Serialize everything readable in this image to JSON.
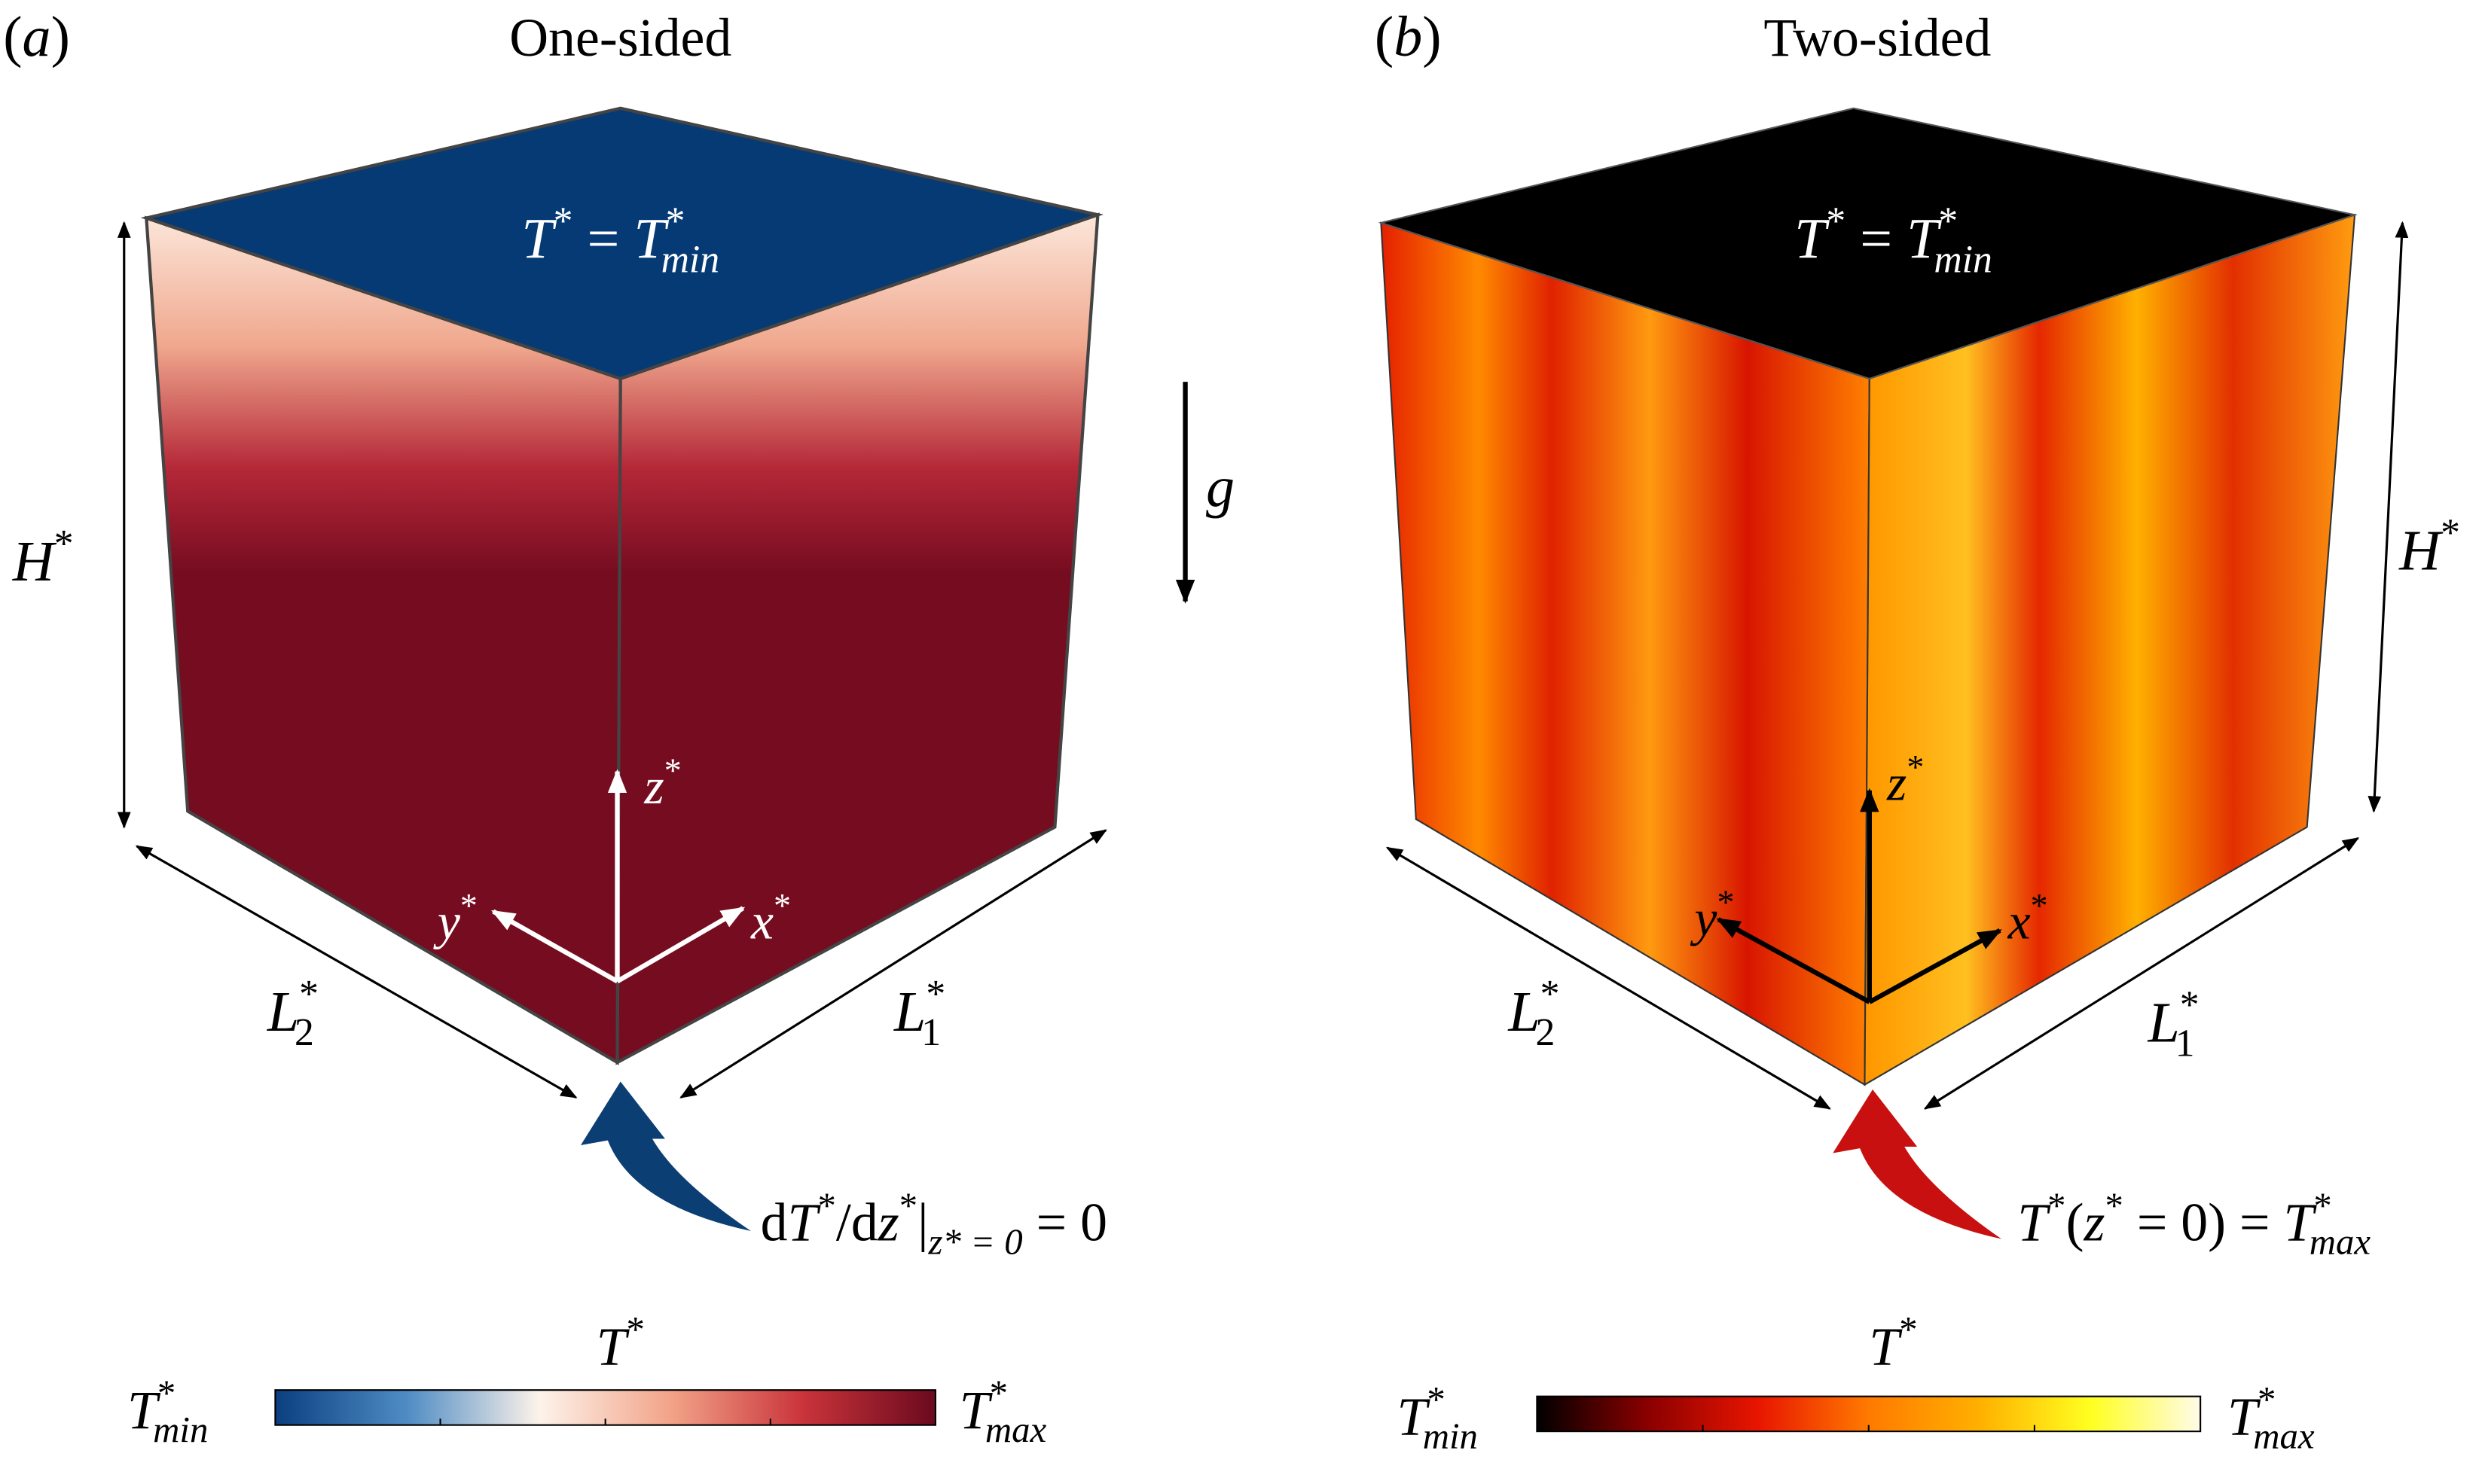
{
  "panels": [
    {
      "tag": [
        {
          "text": "("
        },
        {
          "text": "a",
          "i": true
        },
        {
          "text": ")"
        }
      ],
      "title": "One-sided",
      "top_label": [
        {
          "text": "T",
          "i": true
        },
        {
          "text": "*",
          "pos": "sup"
        },
        {
          "text": " = "
        },
        {
          "text": "T",
          "i": true
        },
        {
          "text": "*",
          "pos": "sup"
        },
        {
          "text": "min",
          "pos": "sub",
          "i": true
        }
      ],
      "height_label": [
        {
          "text": "H",
          "i": true
        },
        {
          "text": "*",
          "pos": "sup"
        }
      ],
      "l2_label": [
        {
          "text": "L",
          "i": true
        },
        {
          "text": "*",
          "pos": "sup"
        },
        {
          "text": "2",
          "pos": "sub"
        }
      ],
      "l1_label": [
        {
          "text": "L",
          "i": true
        },
        {
          "text": "*",
          "pos": "sup"
        },
        {
          "text": "1",
          "pos": "sub"
        }
      ],
      "z_label": [
        {
          "text": "z",
          "i": true
        },
        {
          "text": "*",
          "pos": "sup"
        }
      ],
      "y_label": [
        {
          "text": "y",
          "i": true
        },
        {
          "text": "*",
          "pos": "sup"
        }
      ],
      "x_label": [
        {
          "text": "x",
          "i": true
        },
        {
          "text": "*",
          "pos": "sup"
        }
      ],
      "gravity_label": [
        {
          "text": "g",
          "i": true
        }
      ],
      "boundary_condition": [
        {
          "text": "d"
        },
        {
          "text": "T",
          "i": true
        },
        {
          "text": "*",
          "pos": "sup"
        },
        {
          "text": "/d"
        },
        {
          "text": "z",
          "i": true
        },
        {
          "text": "*",
          "pos": "sup"
        },
        {
          "text": "|"
        },
        {
          "text": "z* = 0",
          "pos": "sub",
          "i": true
        },
        {
          "text": " = 0"
        }
      ],
      "colorbar": {
        "title": [
          {
            "text": "T",
            "i": true
          },
          {
            "text": "*",
            "pos": "sup"
          }
        ],
        "min_label": [
          {
            "text": "T",
            "i": true
          },
          {
            "text": "*",
            "pos": "sup"
          },
          {
            "text": "min",
            "pos": "sub",
            "i": true
          }
        ],
        "max_label": [
          {
            "text": "T",
            "i": true
          },
          {
            "text": "*",
            "pos": "sup"
          },
          {
            "text": "max",
            "pos": "sub",
            "i": true
          }
        ],
        "colors": [
          "#0b3f80",
          "#4f8cc4",
          "#fdf3ea",
          "#f2a388",
          "#c9333a",
          "#6b0a1e"
        ]
      }
    },
    {
      "tag": [
        {
          "text": "("
        },
        {
          "text": "b",
          "i": true
        },
        {
          "text": ")"
        }
      ],
      "title": "Two-sided",
      "top_label": [
        {
          "text": "T",
          "i": true
        },
        {
          "text": "*",
          "pos": "sup"
        },
        {
          "text": " = "
        },
        {
          "text": "T",
          "i": true
        },
        {
          "text": "*",
          "pos": "sup"
        },
        {
          "text": "min",
          "pos": "sub",
          "i": true
        }
      ],
      "height_label": [
        {
          "text": "H",
          "i": true
        },
        {
          "text": "*",
          "pos": "sup"
        }
      ],
      "l2_label": [
        {
          "text": "L",
          "i": true
        },
        {
          "text": "*",
          "pos": "sup"
        },
        {
          "text": "2",
          "pos": "sub"
        }
      ],
      "l1_label": [
        {
          "text": "L",
          "i": true
        },
        {
          "text": "*",
          "pos": "sup"
        },
        {
          "text": "1",
          "pos": "sub"
        }
      ],
      "z_label": [
        {
          "text": "z",
          "i": true
        },
        {
          "text": "*",
          "pos": "sup"
        }
      ],
      "y_label": [
        {
          "text": "y",
          "i": true
        },
        {
          "text": "*",
          "pos": "sup"
        }
      ],
      "x_label": [
        {
          "text": "x",
          "i": true
        },
        {
          "text": "*",
          "pos": "sup"
        }
      ],
      "boundary_condition": [
        {
          "text": "T",
          "i": true
        },
        {
          "text": "*",
          "pos": "sup"
        },
        {
          "text": "("
        },
        {
          "text": "z",
          "i": true
        },
        {
          "text": "*",
          "pos": "sup"
        },
        {
          "text": " = 0) = "
        },
        {
          "text": "T",
          "i": true
        },
        {
          "text": "*",
          "pos": "sup"
        },
        {
          "text": "max",
          "pos": "sub",
          "i": true
        }
      ],
      "colorbar": {
        "title": [
          {
            "text": "T",
            "i": true
          },
          {
            "text": "*",
            "pos": "sup"
          }
        ],
        "min_label": [
          {
            "text": "T",
            "i": true
          },
          {
            "text": "*",
            "pos": "sup"
          },
          {
            "text": "min",
            "pos": "sub",
            "i": true
          }
        ],
        "max_label": [
          {
            "text": "T",
            "i": true
          },
          {
            "text": "*",
            "pos": "sup"
          },
          {
            "text": "max",
            "pos": "sub",
            "i": true
          }
        ],
        "colors": [
          "#000000",
          "#8a0000",
          "#e81500",
          "#ff7a00",
          "#ffb000",
          "#ffff20",
          "#fffbe8"
        ]
      }
    }
  ]
}
